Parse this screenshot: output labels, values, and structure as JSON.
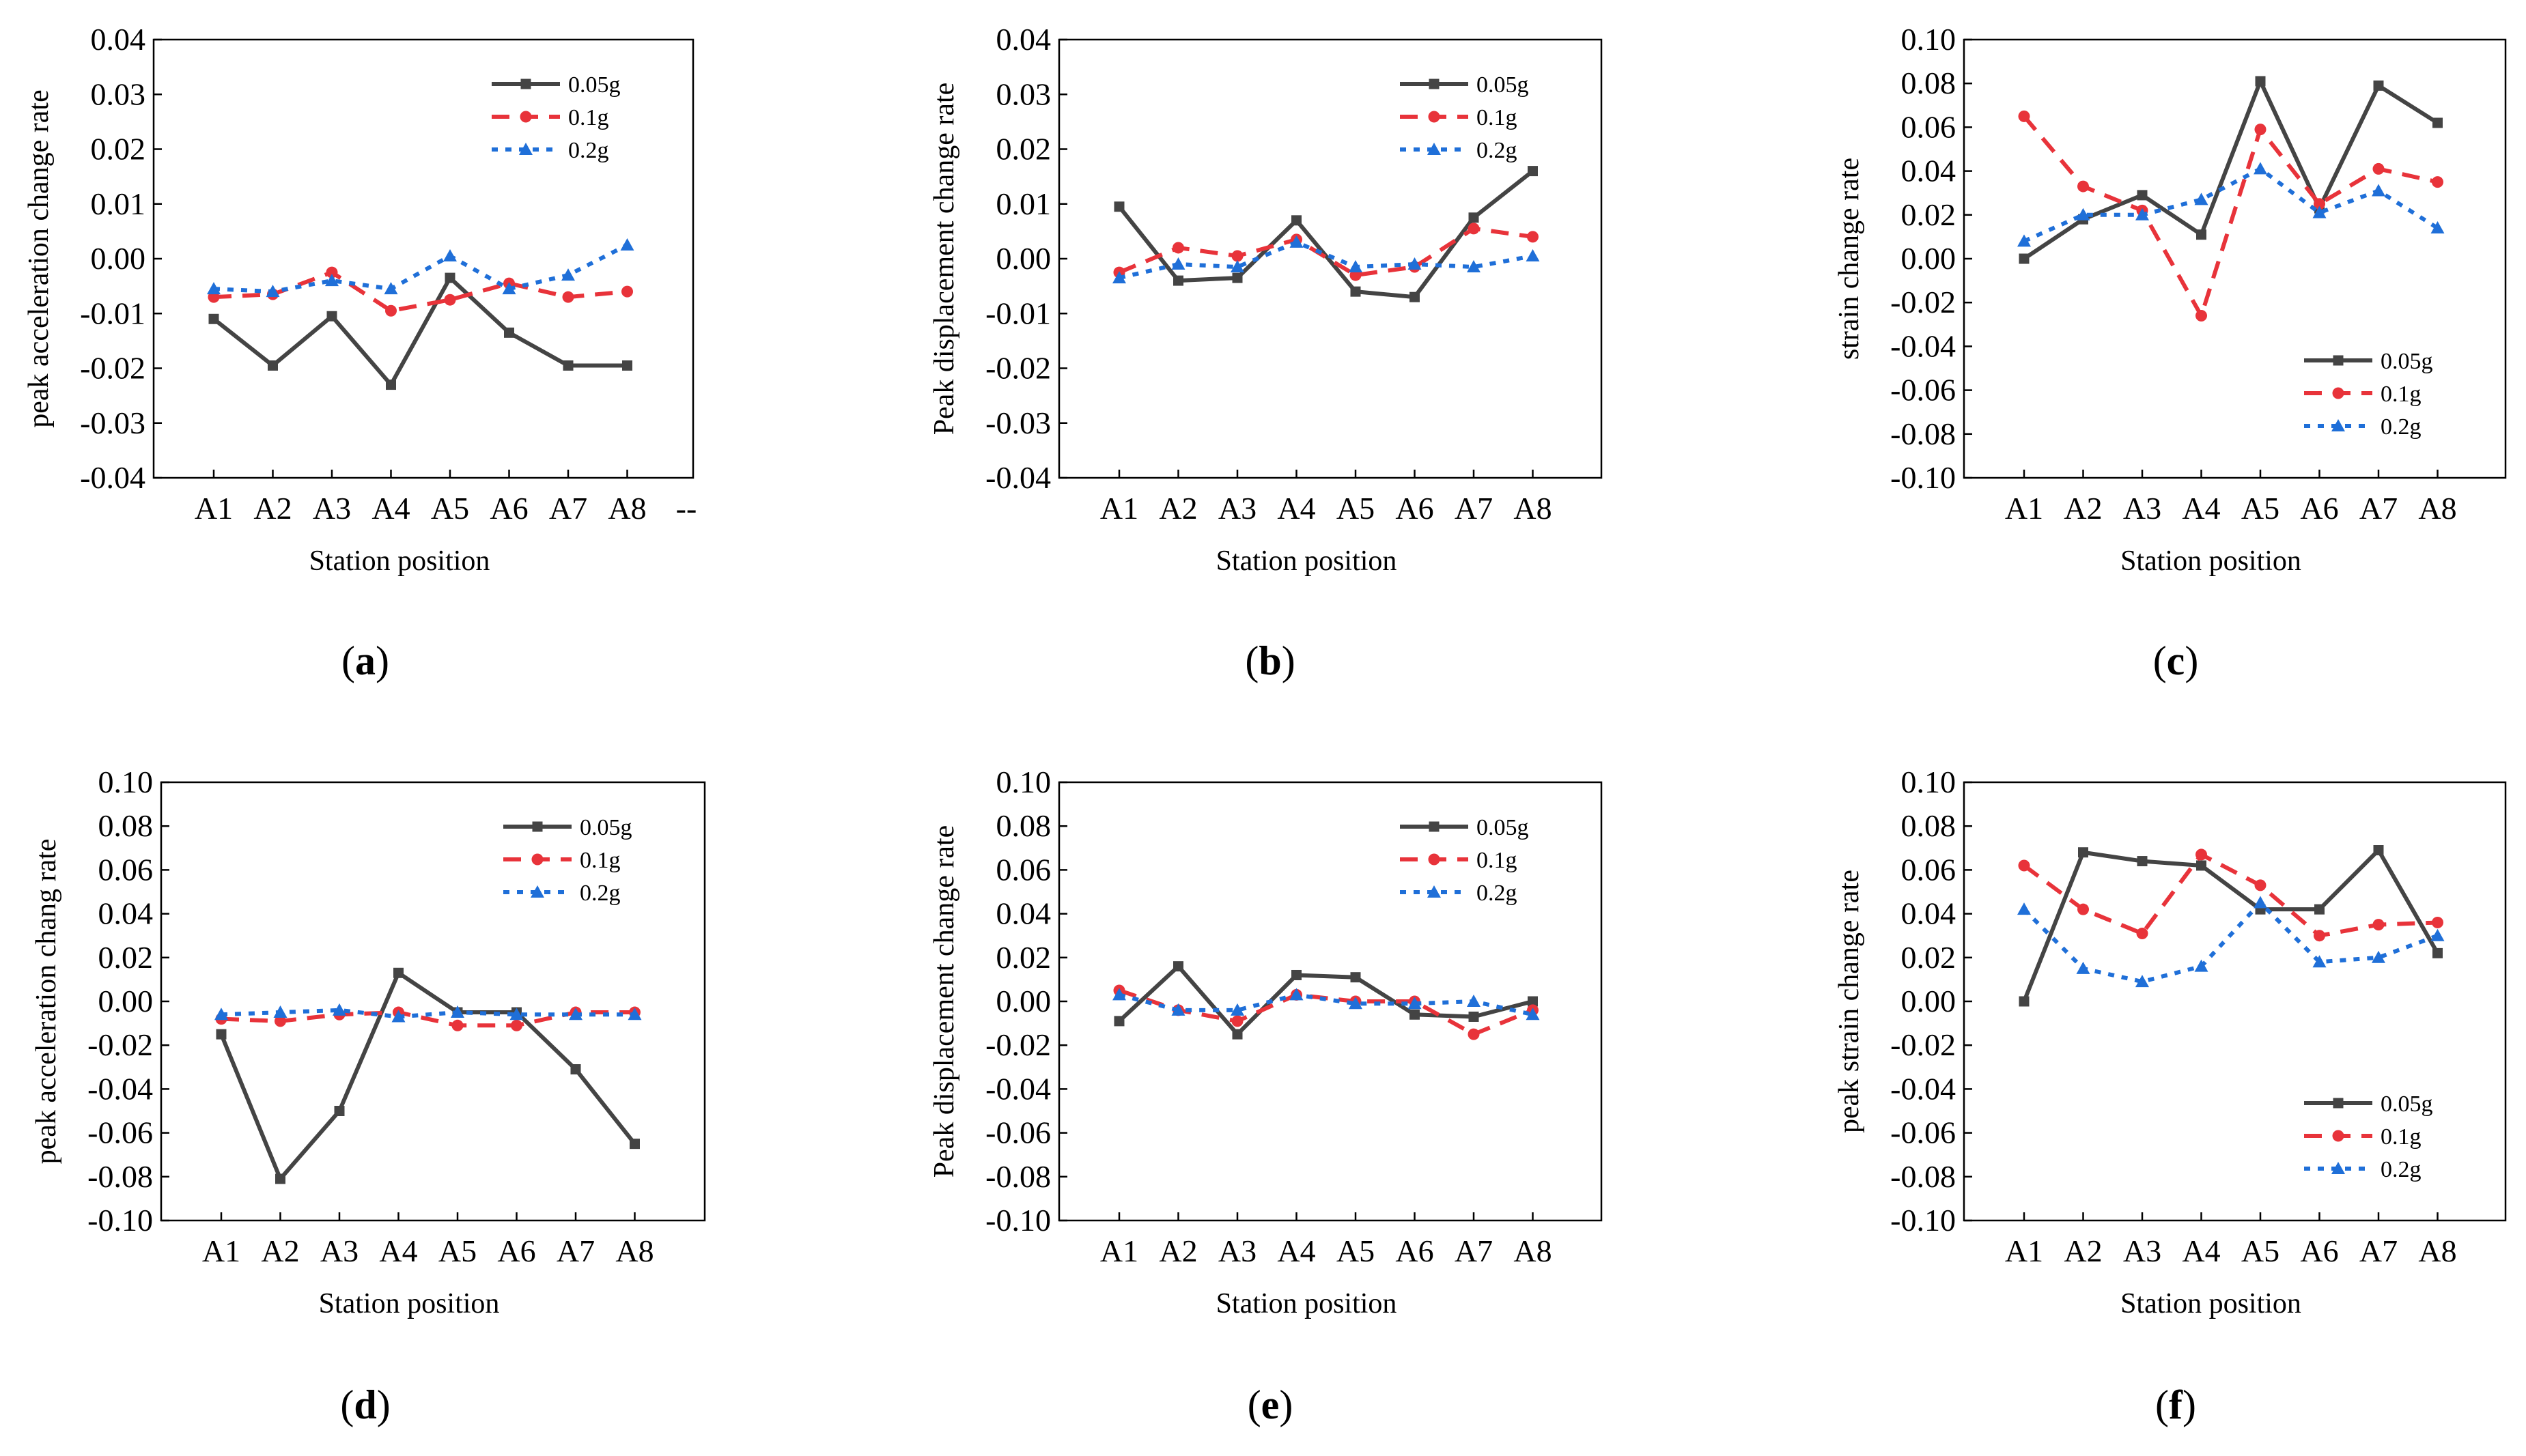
{
  "figure": {
    "panels": [
      {
        "id": "a",
        "label_open": "(",
        "letter": "a",
        "label_close": ")",
        "extra_tick": "--"
      },
      {
        "id": "b",
        "label_open": "(",
        "letter": "b",
        "label_close": ")"
      },
      {
        "id": "c",
        "label_open": "(",
        "letter": "c",
        "label_close": ")"
      },
      {
        "id": "d",
        "label_open": "(",
        "letter": "d",
        "label_close": ")"
      },
      {
        "id": "e",
        "label_open": "(",
        "letter": "e",
        "label_close": ")"
      },
      {
        "id": "f",
        "label_open": "(",
        "letter": "f",
        "label_close": ")"
      }
    ]
  },
  "chart_data": [
    {
      "panel": "a",
      "type": "line",
      "categories": [
        "A1",
        "A2",
        "A3",
        "A4",
        "A5",
        "A6",
        "A7",
        "A8"
      ],
      "xlabel": "Station position",
      "ylabel": "peak acceleration change rate",
      "ylim": [
        -0.04,
        0.04
      ],
      "yticks": [
        "-0.04",
        "-0.03",
        "-0.02",
        "-0.01",
        "0.00",
        "0.01",
        "0.02",
        "0.03",
        "0.04"
      ],
      "legend_position": "top-right",
      "series": [
        {
          "name": "0.05g",
          "color": "#444444",
          "style": "solid",
          "marker": "square",
          "values": [
            -0.011,
            -0.0195,
            -0.0105,
            -0.023,
            -0.0035,
            -0.0135,
            -0.0195,
            -0.0195
          ]
        },
        {
          "name": "0.1g",
          "color": "#e8333a",
          "style": "dashed",
          "marker": "circle",
          "values": [
            -0.007,
            -0.0065,
            -0.0025,
            -0.0095,
            -0.0075,
            -0.0045,
            -0.007,
            -0.006
          ]
        },
        {
          "name": "0.2g",
          "color": "#1f6fd8",
          "style": "dotted",
          "marker": "triangle",
          "values": [
            -0.0055,
            -0.006,
            -0.004,
            -0.0055,
            0.0005,
            -0.0055,
            -0.003,
            0.0025
          ]
        }
      ]
    },
    {
      "panel": "b",
      "type": "line",
      "categories": [
        "A1",
        "A2",
        "A3",
        "A4",
        "A5",
        "A6",
        "A7",
        "A8"
      ],
      "xlabel": "Station position",
      "ylabel": "Peak displacement change rate",
      "ylim": [
        -0.04,
        0.04
      ],
      "yticks": [
        "-0.04",
        "-0.03",
        "-0.02",
        "-0.01",
        "0.00",
        "0.01",
        "0.02",
        "0.03",
        "0.04"
      ],
      "legend_position": "top-right",
      "series": [
        {
          "name": "0.05g",
          "color": "#444444",
          "style": "solid",
          "marker": "square",
          "values": [
            0.0095,
            -0.004,
            -0.0035,
            0.007,
            -0.006,
            -0.007,
            0.0075,
            0.016
          ]
        },
        {
          "name": "0.1g",
          "color": "#e8333a",
          "style": "dashed",
          "marker": "circle",
          "values": [
            -0.0025,
            0.002,
            0.0005,
            0.0035,
            -0.003,
            -0.0015,
            0.0055,
            0.004
          ]
        },
        {
          "name": "0.2g",
          "color": "#1f6fd8",
          "style": "dotted",
          "marker": "triangle",
          "values": [
            -0.0035,
            -0.001,
            -0.0015,
            0.003,
            -0.0015,
            -0.001,
            -0.0015,
            0.0005
          ]
        }
      ]
    },
    {
      "panel": "c",
      "type": "line",
      "categories": [
        "A1",
        "A2",
        "A3",
        "A4",
        "A5",
        "A6",
        "A7",
        "A8"
      ],
      "xlabel": "Station position",
      "ylabel": "strain change rate",
      "ylim": [
        -0.1,
        0.1
      ],
      "yticks": [
        "-0.10",
        "-0.08",
        "-0.06",
        "-0.04",
        "-0.02",
        "0.00",
        "0.02",
        "0.04",
        "0.06",
        "0.08",
        "0.10"
      ],
      "legend_position": "bottom-right",
      "series": [
        {
          "name": "0.05g",
          "color": "#444444",
          "style": "solid",
          "marker": "square",
          "values": [
            0.0,
            0.018,
            0.029,
            0.011,
            0.081,
            0.023,
            0.079,
            0.062
          ]
        },
        {
          "name": "0.1g",
          "color": "#e8333a",
          "style": "dashed",
          "marker": "circle",
          "values": [
            0.065,
            0.033,
            0.022,
            -0.026,
            0.059,
            0.025,
            0.041,
            0.035
          ]
        },
        {
          "name": "0.2g",
          "color": "#1f6fd8",
          "style": "dotted",
          "marker": "triangle",
          "values": [
            0.008,
            0.02,
            0.02,
            0.027,
            0.041,
            0.021,
            0.031,
            0.014
          ]
        }
      ]
    },
    {
      "panel": "d",
      "type": "line",
      "categories": [
        "A1",
        "A2",
        "A3",
        "A4",
        "A5",
        "A6",
        "A7",
        "A8"
      ],
      "xlabel": "Station position",
      "ylabel": "peak acceleration chang rate",
      "ylim": [
        -0.1,
        0.1
      ],
      "yticks": [
        "-0.10",
        "-0.08",
        "-0.06",
        "-0.04",
        "-0.02",
        "0.00",
        "0.02",
        "0.04",
        "0.06",
        "0.08",
        "0.10"
      ],
      "legend_position": "top-right",
      "series": [
        {
          "name": "0.05g",
          "color": "#444444",
          "style": "solid",
          "marker": "square",
          "values": [
            -0.015,
            -0.081,
            -0.05,
            0.013,
            -0.005,
            -0.005,
            -0.031,
            -0.065
          ]
        },
        {
          "name": "0.1g",
          "color": "#e8333a",
          "style": "dashed",
          "marker": "circle",
          "values": [
            -0.008,
            -0.009,
            -0.006,
            -0.005,
            -0.011,
            -0.011,
            -0.005,
            -0.005
          ]
        },
        {
          "name": "0.2g",
          "color": "#1f6fd8",
          "style": "dotted",
          "marker": "triangle",
          "values": [
            -0.006,
            -0.005,
            -0.004,
            -0.007,
            -0.005,
            -0.006,
            -0.006,
            -0.006
          ]
        }
      ]
    },
    {
      "panel": "e",
      "type": "line",
      "categories": [
        "A1",
        "A2",
        "A3",
        "A4",
        "A5",
        "A6",
        "A7",
        "A8"
      ],
      "xlabel": "Station position",
      "ylabel": "Peak displacement change rate",
      "ylim": [
        -0.1,
        0.1
      ],
      "yticks": [
        "-0.10",
        "-0.08",
        "-0.06",
        "-0.04",
        "-0.02",
        "0.00",
        "0.02",
        "0.04",
        "0.06",
        "0.08",
        "0.10"
      ],
      "legend_position": "top-right",
      "series": [
        {
          "name": "0.05g",
          "color": "#444444",
          "style": "solid",
          "marker": "square",
          "values": [
            -0.009,
            0.016,
            -0.015,
            0.012,
            0.011,
            -0.006,
            -0.007,
            0.0
          ]
        },
        {
          "name": "0.1g",
          "color": "#e8333a",
          "style": "dashed",
          "marker": "circle",
          "values": [
            0.005,
            -0.004,
            -0.009,
            0.003,
            0.0,
            0.0,
            -0.015,
            -0.004
          ]
        },
        {
          "name": "0.2g",
          "color": "#1f6fd8",
          "style": "dotted",
          "marker": "triangle",
          "values": [
            0.003,
            -0.004,
            -0.004,
            0.003,
            -0.001,
            -0.001,
            0.0,
            -0.006
          ]
        }
      ]
    },
    {
      "panel": "f",
      "type": "line",
      "categories": [
        "A1",
        "A2",
        "A3",
        "A4",
        "A5",
        "A6",
        "A7",
        "A8"
      ],
      "xlabel": "Station position",
      "ylabel": "peak strain change rate",
      "ylim": [
        -0.1,
        0.1
      ],
      "yticks": [
        "-0.10",
        "-0.08",
        "-0.06",
        "-0.04",
        "-0.02",
        "0.00",
        "0.02",
        "0.04",
        "0.06",
        "0.08",
        "0.10"
      ],
      "legend_position": "bottom-right",
      "series": [
        {
          "name": "0.05g",
          "color": "#444444",
          "style": "solid",
          "marker": "square",
          "values": [
            0.0,
            0.068,
            0.064,
            0.062,
            0.042,
            0.042,
            0.069,
            0.022
          ]
        },
        {
          "name": "0.1g",
          "color": "#e8333a",
          "style": "dashed",
          "marker": "circle",
          "values": [
            0.062,
            0.042,
            0.031,
            0.067,
            0.053,
            0.03,
            0.035,
            0.036
          ]
        },
        {
          "name": "0.2g",
          "color": "#1f6fd8",
          "style": "dotted",
          "marker": "triangle",
          "values": [
            0.042,
            0.015,
            0.009,
            0.016,
            0.045,
            0.018,
            0.02,
            0.03
          ]
        }
      ]
    }
  ]
}
